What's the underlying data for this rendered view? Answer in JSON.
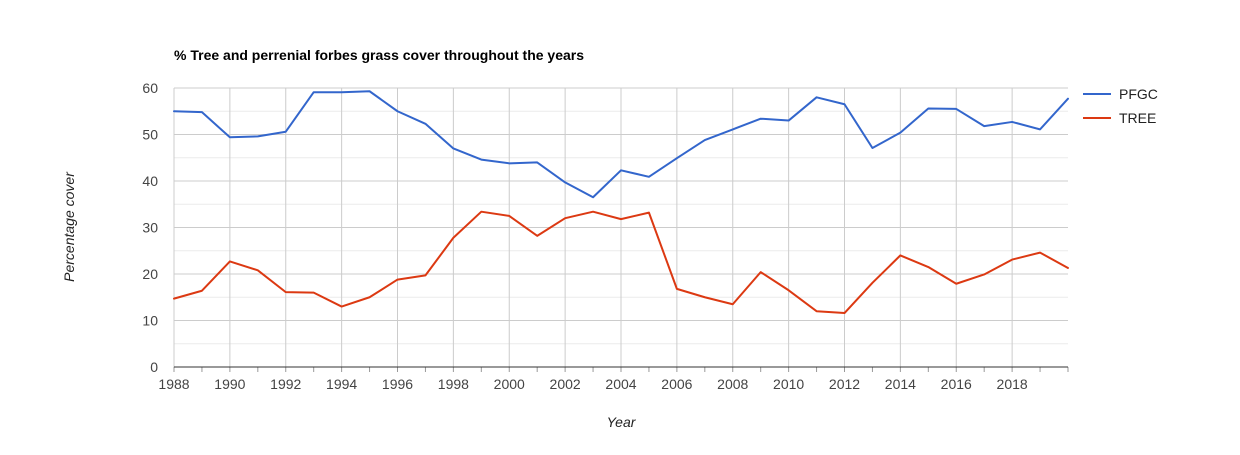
{
  "chart_data": {
    "type": "line",
    "title": "% Tree and perrenial forbes grass cover throughout the years",
    "xlabel": "Year",
    "ylabel": "Percentage cover",
    "x": [
      1988,
      1989,
      1990,
      1991,
      1992,
      1993,
      1994,
      1995,
      1996,
      1997,
      1998,
      1999,
      2000,
      2001,
      2002,
      2003,
      2004,
      2005,
      2006,
      2007,
      2008,
      2009,
      2010,
      2011,
      2012,
      2013,
      2014,
      2015,
      2016,
      2017,
      2018,
      2019,
      2020
    ],
    "xlim": [
      1988,
      2020
    ],
    "ylim": [
      0,
      60
    ],
    "x_ticks": [
      "1988",
      "1990",
      "1992",
      "1994",
      "1996",
      "1998",
      "2000",
      "2002",
      "2004",
      "2006",
      "2008",
      "2010",
      "2012",
      "2014",
      "2016",
      "2018"
    ],
    "y_ticks": [
      "0",
      "10",
      "20",
      "30",
      "40",
      "50",
      "60"
    ],
    "grid": true,
    "legend_position": "right",
    "series": [
      {
        "name": "PFGC",
        "color": "#3366cc",
        "values": [
          55.0,
          54.8,
          49.4,
          49.6,
          50.6,
          59.1,
          59.1,
          59.3,
          55.0,
          52.3,
          47.0,
          44.6,
          43.8,
          44.0,
          39.7,
          36.5,
          42.3,
          40.9,
          44.9,
          48.8,
          51.1,
          53.4,
          53.0,
          58.0,
          56.5,
          47.1,
          50.4,
          55.6,
          55.5,
          51.8,
          52.7,
          51.1,
          57.7
        ]
      },
      {
        "name": "TREE",
        "color": "#dc3912",
        "values": [
          14.7,
          16.4,
          22.7,
          20.8,
          16.1,
          16.0,
          13.0,
          15.0,
          18.8,
          19.7,
          27.8,
          33.4,
          32.5,
          28.2,
          32.0,
          33.4,
          31.8,
          33.2,
          16.8,
          15.0,
          13.5,
          20.4,
          16.5,
          12.0,
          11.6,
          18.1,
          24.0,
          21.5,
          17.9,
          19.9,
          23.1,
          24.6,
          21.3
        ]
      }
    ]
  }
}
